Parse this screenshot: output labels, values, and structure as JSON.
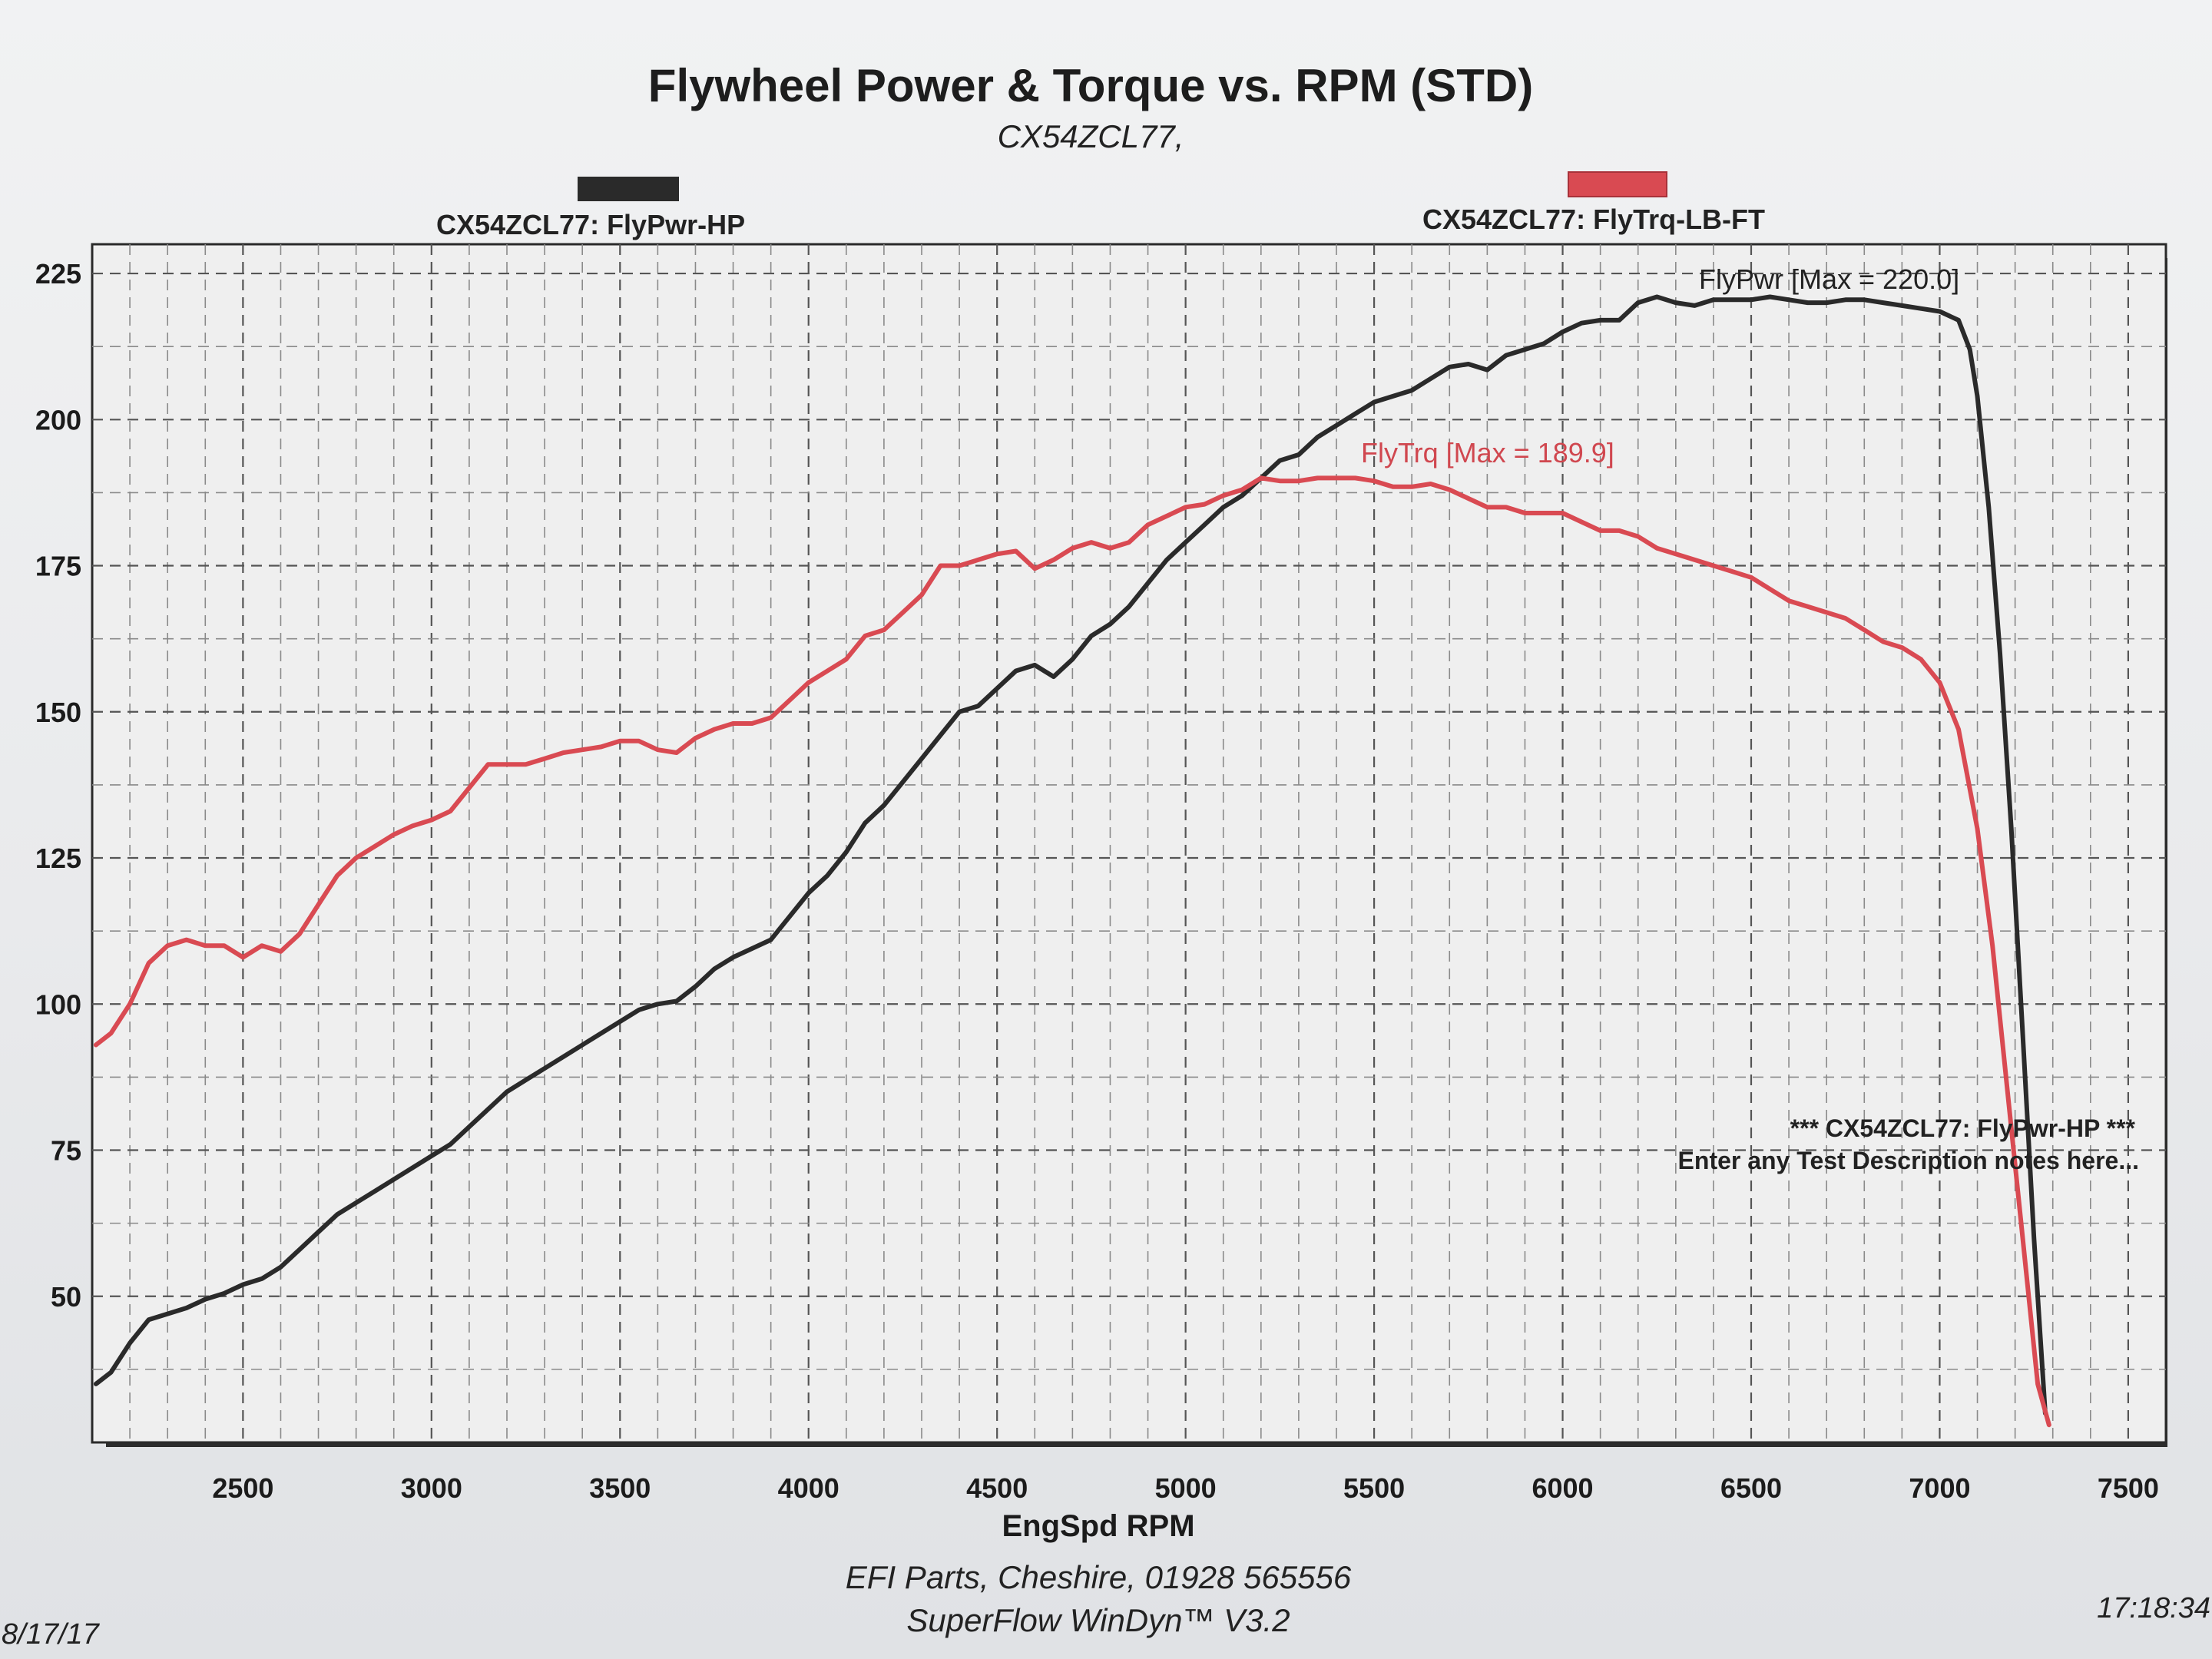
{
  "chart_data": {
    "type": "line",
    "title": "Flywheel Power & Torque vs. RPM (STD)",
    "subtitle": "CX54ZCL77,",
    "xlabel": "EngSpd RPM",
    "ylabel": "",
    "xlim": [
      2100,
      7600
    ],
    "ylim": [
      25,
      230
    ],
    "x_ticks": [
      "2500",
      "3000",
      "3500",
      "4000",
      "4500",
      "5000",
      "5500",
      "6000",
      "6500",
      "7000",
      "7500"
    ],
    "y_ticks": [
      "50",
      "75",
      "100",
      "125",
      "150",
      "175",
      "200",
      "225"
    ],
    "grid": true,
    "legend_position": "top",
    "series": [
      {
        "name": "CX54ZCL77: FlyPwr-HP",
        "color": "#2a2a2a",
        "annotation": "FlyPwr [Max = 220.0]",
        "points": [
          [
            2110,
            35
          ],
          [
            2150,
            37
          ],
          [
            2200,
            42
          ],
          [
            2250,
            46
          ],
          [
            2300,
            47
          ],
          [
            2350,
            48
          ],
          [
            2400,
            49.5
          ],
          [
            2450,
            50.5
          ],
          [
            2500,
            52
          ],
          [
            2550,
            53
          ],
          [
            2600,
            55
          ],
          [
            2650,
            58
          ],
          [
            2700,
            61
          ],
          [
            2750,
            64
          ],
          [
            2800,
            66
          ],
          [
            2850,
            68
          ],
          [
            2900,
            70
          ],
          [
            2950,
            72
          ],
          [
            3000,
            74
          ],
          [
            3050,
            76
          ],
          [
            3100,
            79
          ],
          [
            3150,
            82
          ],
          [
            3200,
            85
          ],
          [
            3250,
            87
          ],
          [
            3300,
            89
          ],
          [
            3350,
            91
          ],
          [
            3400,
            93
          ],
          [
            3450,
            95
          ],
          [
            3500,
            97
          ],
          [
            3550,
            99
          ],
          [
            3600,
            100
          ],
          [
            3650,
            100.5
          ],
          [
            3700,
            103
          ],
          [
            3750,
            106
          ],
          [
            3800,
            108
          ],
          [
            3850,
            109.5
          ],
          [
            3900,
            111
          ],
          [
            3950,
            115
          ],
          [
            4000,
            119
          ],
          [
            4050,
            122
          ],
          [
            4100,
            126
          ],
          [
            4150,
            131
          ],
          [
            4200,
            134
          ],
          [
            4250,
            138
          ],
          [
            4300,
            142
          ],
          [
            4350,
            146
          ],
          [
            4400,
            150
          ],
          [
            4450,
            151
          ],
          [
            4500,
            154
          ],
          [
            4550,
            157
          ],
          [
            4600,
            158
          ],
          [
            4650,
            156
          ],
          [
            4700,
            159
          ],
          [
            4750,
            163
          ],
          [
            4800,
            165
          ],
          [
            4850,
            168
          ],
          [
            4900,
            172
          ],
          [
            4950,
            176
          ],
          [
            5000,
            179
          ],
          [
            5050,
            182
          ],
          [
            5100,
            185
          ],
          [
            5150,
            187
          ],
          [
            5200,
            190
          ],
          [
            5250,
            193
          ],
          [
            5300,
            194
          ],
          [
            5350,
            197
          ],
          [
            5400,
            199
          ],
          [
            5450,
            201
          ],
          [
            5500,
            203
          ],
          [
            5550,
            204
          ],
          [
            5600,
            205
          ],
          [
            5650,
            207
          ],
          [
            5700,
            209
          ],
          [
            5750,
            209.5
          ],
          [
            5800,
            208.5
          ],
          [
            5850,
            211
          ],
          [
            5900,
            212
          ],
          [
            5950,
            213
          ],
          [
            6000,
            215
          ],
          [
            6050,
            216.5
          ],
          [
            6100,
            217
          ],
          [
            6150,
            217
          ],
          [
            6200,
            220
          ],
          [
            6250,
            221
          ],
          [
            6300,
            220
          ],
          [
            6350,
            219.5
          ],
          [
            6400,
            220.5
          ],
          [
            6450,
            220.5
          ],
          [
            6500,
            220.5
          ],
          [
            6550,
            221
          ],
          [
            6600,
            220.5
          ],
          [
            6650,
            220
          ],
          [
            6700,
            220
          ],
          [
            6750,
            220.5
          ],
          [
            6800,
            220.5
          ],
          [
            6850,
            220
          ],
          [
            6900,
            219.5
          ],
          [
            6950,
            219
          ],
          [
            7000,
            218.5
          ],
          [
            7050,
            217
          ],
          [
            7080,
            212
          ],
          [
            7100,
            204
          ],
          [
            7130,
            185
          ],
          [
            7160,
            160
          ],
          [
            7190,
            130
          ],
          [
            7220,
            95
          ],
          [
            7250,
            60
          ],
          [
            7280,
            30
          ]
        ]
      },
      {
        "name": "CX54ZCL77: FlyTrq-LB-FT",
        "color": "#d94a52",
        "annotation": "FlyTrq [Max = 189.9]",
        "points": [
          [
            2110,
            93
          ],
          [
            2150,
            95
          ],
          [
            2200,
            100
          ],
          [
            2250,
            107
          ],
          [
            2300,
            110
          ],
          [
            2350,
            111
          ],
          [
            2400,
            110
          ],
          [
            2450,
            110
          ],
          [
            2500,
            108
          ],
          [
            2550,
            110
          ],
          [
            2600,
            109
          ],
          [
            2650,
            112
          ],
          [
            2700,
            117
          ],
          [
            2750,
            122
          ],
          [
            2800,
            125
          ],
          [
            2850,
            127
          ],
          [
            2900,
            129
          ],
          [
            2950,
            130.5
          ],
          [
            3000,
            131.5
          ],
          [
            3050,
            133
          ],
          [
            3100,
            137
          ],
          [
            3150,
            141
          ],
          [
            3200,
            141
          ],
          [
            3250,
            141
          ],
          [
            3300,
            142
          ],
          [
            3350,
            143
          ],
          [
            3400,
            143.5
          ],
          [
            3450,
            144
          ],
          [
            3500,
            145
          ],
          [
            3550,
            145
          ],
          [
            3600,
            143.5
          ],
          [
            3650,
            143
          ],
          [
            3700,
            145.5
          ],
          [
            3750,
            147
          ],
          [
            3800,
            148
          ],
          [
            3850,
            148
          ],
          [
            3900,
            149
          ],
          [
            3950,
            152
          ],
          [
            4000,
            155
          ],
          [
            4050,
            157
          ],
          [
            4100,
            159
          ],
          [
            4150,
            163
          ],
          [
            4200,
            164
          ],
          [
            4250,
            167
          ],
          [
            4300,
            170
          ],
          [
            4350,
            175
          ],
          [
            4400,
            175
          ],
          [
            4450,
            176
          ],
          [
            4500,
            177
          ],
          [
            4550,
            177.5
          ],
          [
            4600,
            174.5
          ],
          [
            4650,
            176
          ],
          [
            4700,
            178
          ],
          [
            4750,
            179
          ],
          [
            4800,
            178
          ],
          [
            4850,
            179
          ],
          [
            4900,
            182
          ],
          [
            4950,
            183.5
          ],
          [
            5000,
            185
          ],
          [
            5050,
            185.5
          ],
          [
            5100,
            187
          ],
          [
            5150,
            188
          ],
          [
            5200,
            190
          ],
          [
            5250,
            189.5
          ],
          [
            5300,
            189.5
          ],
          [
            5350,
            190
          ],
          [
            5400,
            190
          ],
          [
            5450,
            190
          ],
          [
            5500,
            189.5
          ],
          [
            5550,
            188.5
          ],
          [
            5600,
            188.5
          ],
          [
            5650,
            189
          ],
          [
            5700,
            188
          ],
          [
            5750,
            186.5
          ],
          [
            5800,
            185
          ],
          [
            5850,
            185
          ],
          [
            5900,
            184
          ],
          [
            5950,
            184
          ],
          [
            6000,
            184
          ],
          [
            6050,
            182.5
          ],
          [
            6100,
            181
          ],
          [
            6150,
            181
          ],
          [
            6200,
            180
          ],
          [
            6250,
            178
          ],
          [
            6300,
            177
          ],
          [
            6350,
            176
          ],
          [
            6400,
            175
          ],
          [
            6450,
            174
          ],
          [
            6500,
            173
          ],
          [
            6550,
            171
          ],
          [
            6600,
            169
          ],
          [
            6650,
            168
          ],
          [
            6700,
            167
          ],
          [
            6750,
            166
          ],
          [
            6800,
            164
          ],
          [
            6850,
            162
          ],
          [
            6900,
            161
          ],
          [
            6950,
            159
          ],
          [
            7000,
            155
          ],
          [
            7050,
            147
          ],
          [
            7100,
            130
          ],
          [
            7140,
            110
          ],
          [
            7180,
            85
          ],
          [
            7220,
            60
          ],
          [
            7260,
            35
          ],
          [
            7290,
            28
          ]
        ]
      }
    ],
    "note_line1": "*** CX54ZCL77: FlyPwr-HP ***",
    "note_line2": "Enter any Test Description notes here..."
  },
  "footer": {
    "line1": "EFI Parts, Cheshire, 01928 565556",
    "line2": "SuperFlow WinDyn™ V3.2",
    "date": "8/17/17",
    "time": "17:18:34"
  }
}
